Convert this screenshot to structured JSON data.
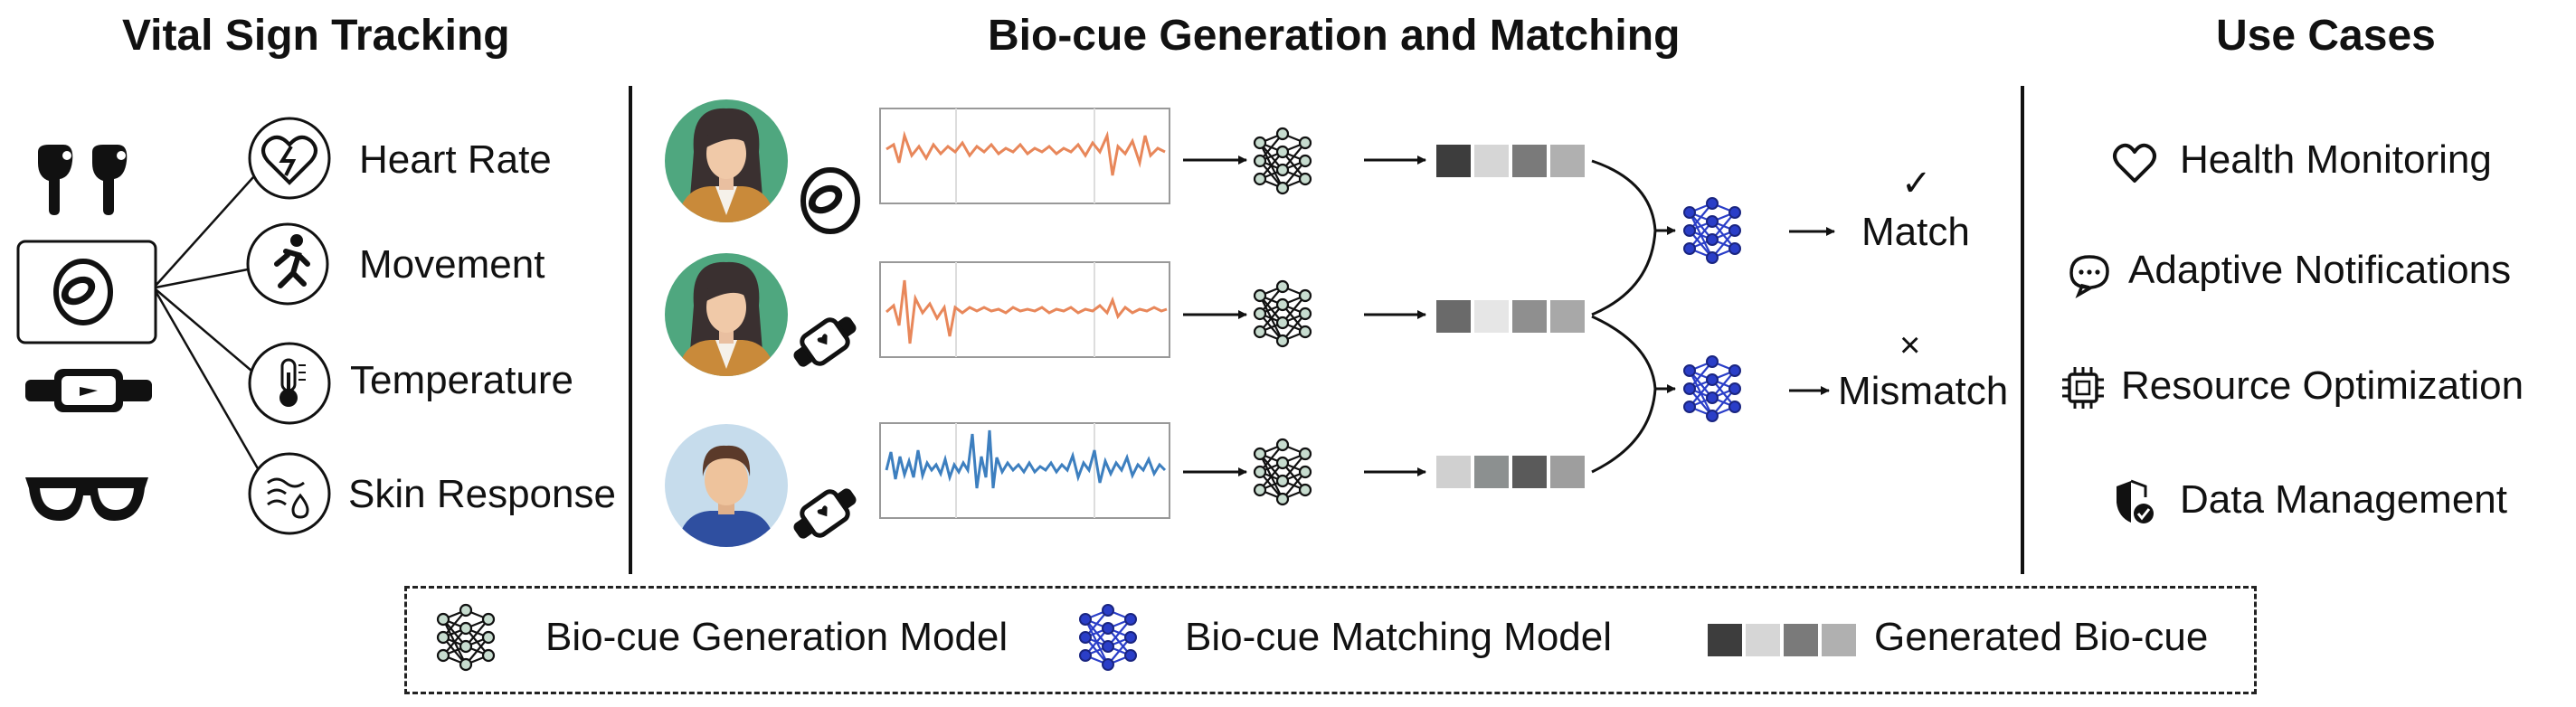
{
  "sections": {
    "left_title": "Vital Sign Tracking",
    "middle_title": "Bio-cue Generation and Matching",
    "right_title": "Use Cases"
  },
  "vital_signs": [
    {
      "label": "Heart Rate",
      "icon": "heart-rate-icon"
    },
    {
      "label": "Movement",
      "icon": "running-person-icon"
    },
    {
      "label": "Temperature",
      "icon": "thermometer-icon"
    },
    {
      "label": "Skin Response",
      "icon": "skin-response-icon"
    }
  ],
  "devices": [
    "earbuds-icon",
    "smart-ring-icon",
    "smartwatch-icon",
    "glasses-icon"
  ],
  "results": {
    "match_symbol": "✓",
    "match_label": "Match",
    "mismatch_symbol": "×",
    "mismatch_label": "Mismatch"
  },
  "use_cases": [
    {
      "label": "Health Monitoring",
      "icon": "heart-outline-icon"
    },
    {
      "label": "Adaptive Notifications",
      "icon": "chat-bubble-icon"
    },
    {
      "label": "Resource Optimization",
      "icon": "chip-icon"
    },
    {
      "label": "Data Management",
      "icon": "shield-check-icon"
    }
  ],
  "legend": {
    "generation_model": "Bio-cue Generation Model",
    "matching_model": "Bio-cue Matching Model",
    "generated_biocue": "Generated Bio-cue"
  },
  "colors": {
    "generation_node": "#c7dccf",
    "matching_node": "#2a3ec8",
    "signal_orange": "#e8875a",
    "signal_blue": "#3d7fbf",
    "avatar_green": "#4fa77f",
    "avatar_lightblue": "#c6dcec"
  }
}
